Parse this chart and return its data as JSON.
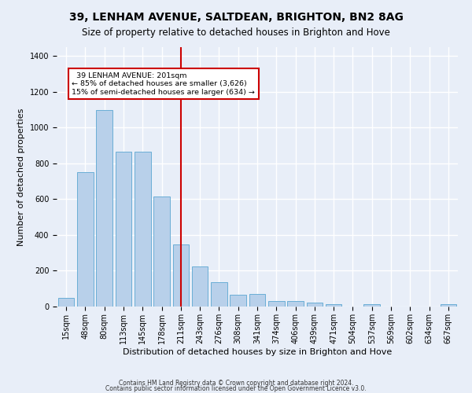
{
  "title_line1": "39, LENHAM AVENUE, SALTDEAN, BRIGHTON, BN2 8AG",
  "title_line2": "Size of property relative to detached houses in Brighton and Hove",
  "xlabel": "Distribution of detached houses by size in Brighton and Hove",
  "ylabel": "Number of detached properties",
  "footnote1": "Contains HM Land Registry data © Crown copyright and database right 2024.",
  "footnote2": "Contains public sector information licensed under the Open Government Licence v3.0.",
  "bar_labels": [
    "15sqm",
    "48sqm",
    "80sqm",
    "113sqm",
    "145sqm",
    "178sqm",
    "211sqm",
    "243sqm",
    "276sqm",
    "308sqm",
    "341sqm",
    "374sqm",
    "406sqm",
    "439sqm",
    "471sqm",
    "504sqm",
    "537sqm",
    "569sqm",
    "602sqm",
    "634sqm",
    "667sqm"
  ],
  "bar_values": [
    50,
    750,
    1100,
    865,
    865,
    615,
    345,
    225,
    135,
    65,
    70,
    30,
    30,
    22,
    15,
    0,
    12,
    0,
    0,
    0,
    12
  ],
  "bar_color": "#b8d0ea",
  "bar_edgecolor": "#6aaed6",
  "vline_x_idx": 6,
  "vline_color": "#cc0000",
  "annotation_text": "  39 LENHAM AVENUE: 201sqm\n← 85% of detached houses are smaller (3,626)\n15% of semi-detached houses are larger (634) →",
  "annotation_box_color": "#ffffff",
  "annotation_box_edgecolor": "#cc0000",
  "ylim": [
    0,
    1450
  ],
  "yticks": [
    0,
    200,
    400,
    600,
    800,
    1000,
    1200,
    1400
  ],
  "background_color": "#e8eef8",
  "grid_color": "#ffffff",
  "title_fontsize": 10,
  "subtitle_fontsize": 8.5,
  "axis_label_fontsize": 8,
  "tick_fontsize": 7,
  "footnote_fontsize": 5.5
}
